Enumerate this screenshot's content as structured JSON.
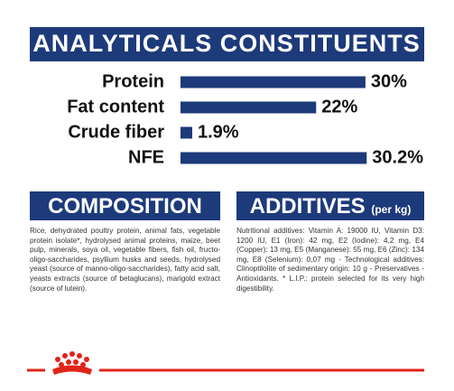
{
  "chart_data": {
    "type": "bar",
    "title": "ANALYTICALS CONSTITUENTS",
    "categories": [
      "Protein",
      "Fat content",
      "Crude fiber",
      "NFE"
    ],
    "values": [
      30,
      22,
      1.9,
      30.2
    ],
    "value_labels": [
      "30%",
      "22%",
      "1.9%",
      "30.2%"
    ],
    "color": "#1d3a7a"
  },
  "composition": {
    "title": "COMPOSITION",
    "text": "Rice, dehydrated poultry protein, animal fats, vegetable protein isolate*, hydrolysed animal proteins, maize, beet pulp, minerals, soya oil, vegetable fibers, fish oil, fructo- oligo-saccharides, psyllium husks and seeds, hydrolysed yeast (source of manno-oligo-saccharides), fatty acid salt, yeasts extracts (source of betaglucans), marigold extract (source of lutein)."
  },
  "additives": {
    "title": "ADDITIVES",
    "unit": "(per kg)",
    "text": "Nutritional additives: Vitamin A: 19000 IU, Vitamin D3: 1200 IU, E1 (Iron): 42 mg, E2 (Iodine): 4,2 mg, E4 (Copper): 13 mg, E5 (Manganese): 55 mg, E6 (Zinc): 134 mg, E8 (Selenium): 0,07 mg - Technological additives: Clinoptilolite of sedimentary origin: 10 g - Preservatives - Antioxidants. * L.I.P.: protein selected for its very high digestibility."
  }
}
